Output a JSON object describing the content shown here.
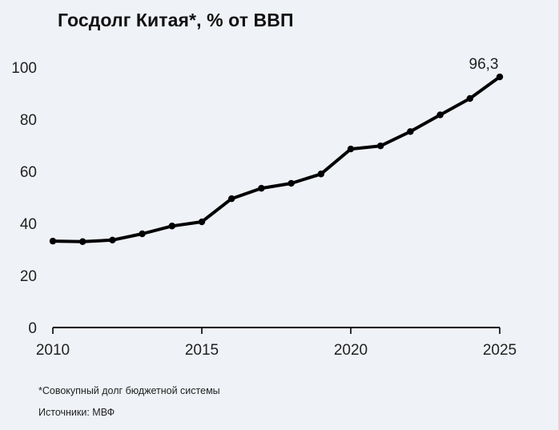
{
  "chart_data": {
    "type": "line",
    "title": "Госдолг Китая*, % от ВВП",
    "xlabel": "",
    "ylabel": "",
    "x": [
      2010,
      2011,
      2012,
      2013,
      2014,
      2015,
      2016,
      2017,
      2018,
      2019,
      2020,
      2021,
      2022,
      2023,
      2024,
      2025
    ],
    "series": [
      {
        "values": [
          33.2,
          33.0,
          33.6,
          36.0,
          39.0,
          40.6,
          49.5,
          53.5,
          55.4,
          59.0,
          68.6,
          69.8,
          75.3,
          81.7,
          88.0,
          96.3
        ]
      }
    ],
    "xlim": [
      2010,
      2025
    ],
    "ylim": [
      0,
      100
    ],
    "x_ticks": [
      2010,
      2015,
      2020,
      2025
    ],
    "y_ticks": [
      0,
      20,
      40,
      60,
      80,
      100
    ],
    "x_tick_labels": [
      "2010",
      "2015",
      "2020",
      "2025"
    ],
    "y_tick_labels": [
      "0",
      "20",
      "40",
      "60",
      "80",
      "100"
    ],
    "annotations": [
      {
        "x": 2025,
        "y": 96.3,
        "text": "96,3"
      }
    ],
    "grid": false,
    "legend": "none",
    "line_color": "#000000"
  },
  "footer": {
    "note": "*Совокупный долг бюджетной системы",
    "source": "Источники: МВФ"
  }
}
